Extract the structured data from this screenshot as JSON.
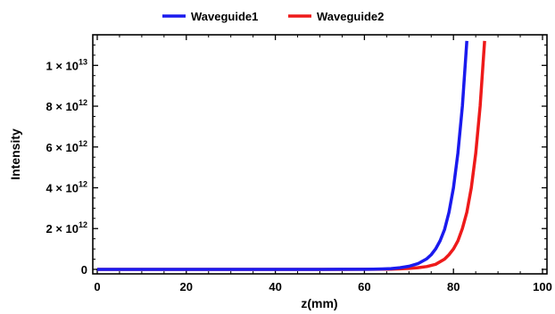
{
  "chart_data": {
    "type": "line",
    "title": "",
    "xlabel": "z(mm)",
    "ylabel": "Intensity",
    "xlim": [
      -1,
      101
    ],
    "ylim": [
      -220000000000.0,
      11500000000000.0
    ],
    "x_ticks": [
      {
        "value": 0,
        "label": "0"
      },
      {
        "value": 20,
        "label": "20"
      },
      {
        "value": 40,
        "label": "40"
      },
      {
        "value": 60,
        "label": "60"
      },
      {
        "value": 80,
        "label": "80"
      },
      {
        "value": 100,
        "label": "100"
      }
    ],
    "y_ticks": [
      {
        "value": 0,
        "mantissa": "0",
        "times": "",
        "power": ""
      },
      {
        "value": 2000000000000.0,
        "mantissa": "2",
        "times": "× 10",
        "power": "12"
      },
      {
        "value": 4000000000000.0,
        "mantissa": "4",
        "times": "× 10",
        "power": "12"
      },
      {
        "value": 6000000000000.0,
        "mantissa": "6",
        "times": "× 10",
        "power": "12"
      },
      {
        "value": 8000000000000.0,
        "mantissa": "8",
        "times": "× 10",
        "power": "12"
      },
      {
        "value": 10000000000000.0,
        "mantissa": "1",
        "times": "× 10",
        "power": "13"
      }
    ],
    "legend_position": "top",
    "grid": false,
    "series": [
      {
        "name": "Waveguide1",
        "color": "#1a1aee",
        "x": [
          0,
          10,
          20,
          30,
          40,
          50,
          55,
          60,
          62,
          64,
          66,
          68,
          70,
          72,
          74,
          75,
          76,
          77,
          78,
          79,
          80,
          81,
          82,
          83
        ],
        "y": [
          0,
          0,
          0,
          0,
          0,
          0,
          1000000000.0,
          5000000000.0,
          10000000000.0,
          20000000000.0,
          40000000000.0,
          80000000000.0,
          150000000000.0,
          280000000000.0,
          520000000000.0,
          720000000000.0,
          1000000000000.0,
          1400000000000.0,
          1950000000000.0,
          2800000000000.0,
          4000000000000.0,
          5700000000000.0,
          8000000000000.0,
          11200000000000.0
        ]
      },
      {
        "name": "Waveguide2",
        "color": "#ee1a1a",
        "x": [
          0,
          10,
          20,
          30,
          40,
          50,
          55,
          60,
          62,
          64,
          66,
          68,
          70,
          72,
          74,
          76,
          78,
          79,
          80,
          81,
          82,
          83,
          84,
          85,
          86,
          87
        ],
        "y": [
          0,
          0,
          0,
          0,
          0,
          0,
          0,
          1000000000.0,
          3000000000.0,
          6000000000.0,
          12000000000.0,
          25000000000.0,
          45000000000.0,
          80000000000.0,
          140000000000.0,
          250000000000.0,
          500000000000.0,
          720000000000.0,
          1000000000000.0,
          1400000000000.0,
          2000000000000.0,
          2800000000000.0,
          4000000000000.0,
          5700000000000.0,
          8000000000000.0,
          11200000000000.0
        ]
      }
    ]
  }
}
